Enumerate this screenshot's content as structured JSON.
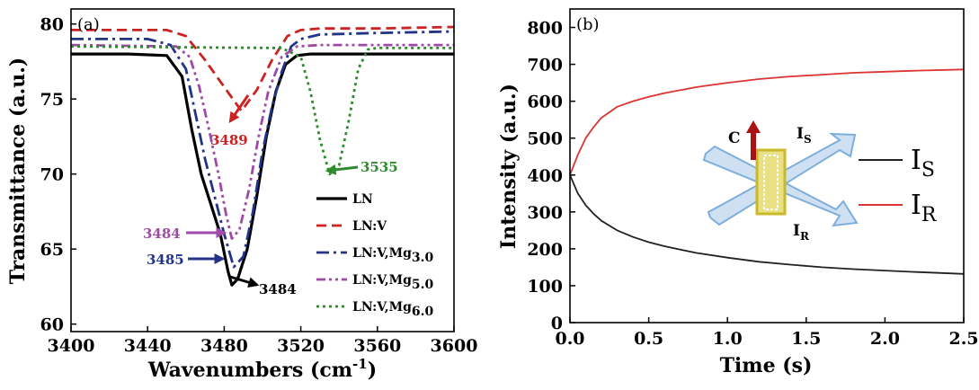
{
  "chart_data": [
    {
      "type": "line",
      "panel_label": "(a)",
      "xlabel_main": "Wavenumbers (cm",
      "xlabel_sup": "-1",
      "xlabel_end": ")",
      "ylabel": "Transmittance (a.u.)",
      "xlim": [
        3400,
        3600
      ],
      "ylim": [
        59.5,
        81
      ],
      "xticks": [
        3400,
        3440,
        3480,
        3520,
        3560,
        3600
      ],
      "yticks": [
        60,
        65,
        70,
        75,
        80
      ],
      "series": [
        {
          "key": "LN",
          "legend_main": "LN",
          "legend_sub": "",
          "color": "#000000",
          "dash": "",
          "x": [
            3400,
            3430,
            3450,
            3458,
            3463,
            3468,
            3473,
            3478,
            3482,
            3484,
            3487,
            3492,
            3497,
            3502,
            3507,
            3512,
            3518,
            3525,
            3540,
            3560,
            3600
          ],
          "y": [
            78.0,
            78.0,
            77.9,
            76.5,
            73.0,
            70.0,
            68.0,
            66.0,
            63.5,
            62.6,
            63.0,
            65.0,
            68.5,
            72.5,
            75.5,
            77.3,
            77.9,
            78.0,
            78.0,
            78.0,
            78.0
          ]
        },
        {
          "key": "LNV",
          "legend_main": "LN:V",
          "legend_sub": "",
          "color": "#cc2222",
          "dash": "11,6",
          "x": [
            3400,
            3450,
            3460,
            3470,
            3480,
            3489,
            3497,
            3505,
            3513,
            3520,
            3530,
            3560,
            3600
          ],
          "y": [
            79.6,
            79.6,
            79.2,
            77.6,
            75.8,
            74.2,
            75.6,
            77.6,
            79.2,
            79.6,
            79.7,
            79.7,
            79.8
          ]
        },
        {
          "key": "Mg30",
          "legend_main": "LN:V,Mg",
          "legend_sub": "3.0",
          "color": "#223388",
          "dash": "14,5,3,5",
          "x": [
            3400,
            3440,
            3452,
            3460,
            3465,
            3470,
            3475,
            3480,
            3485,
            3490,
            3495,
            3500,
            3505,
            3510,
            3515,
            3520,
            3530,
            3560,
            3600
          ],
          "y": [
            79.0,
            79.0,
            78.6,
            77.0,
            74.0,
            71.0,
            68.5,
            66.0,
            63.8,
            64.5,
            67.5,
            71.5,
            74.5,
            76.8,
            78.5,
            79.0,
            79.3,
            79.4,
            79.5
          ]
        },
        {
          "key": "Mg50",
          "legend_main": "LN:V,Mg",
          "legend_sub": "5.0",
          "color": "#a04aa8",
          "dash": "10,4,3,4,3,4",
          "x": [
            3400,
            3455,
            3462,
            3467,
            3472,
            3477,
            3481,
            3484,
            3488,
            3493,
            3498,
            3503,
            3510,
            3518,
            3530,
            3560,
            3600
          ],
          "y": [
            78.6,
            78.5,
            77.8,
            75.8,
            73.0,
            70.0,
            67.3,
            65.7,
            66.3,
            69.0,
            72.5,
            75.5,
            77.8,
            78.5,
            78.6,
            78.6,
            78.6
          ]
        },
        {
          "key": "Mg60",
          "legend_main": "LN:V,Mg",
          "legend_sub": "6.0",
          "color": "#2e8b2e",
          "dash": "3,4",
          "x": [
            3400,
            3510,
            3520,
            3525,
            3530,
            3535,
            3540,
            3545,
            3550,
            3555,
            3560,
            3600
          ],
          "y": [
            78.5,
            78.4,
            77.8,
            75.5,
            72.3,
            70.0,
            70.6,
            73.5,
            77.0,
            78.3,
            78.4,
            78.4
          ]
        }
      ],
      "annotations": [
        {
          "text": "3489",
          "color": "#cc2222"
        },
        {
          "text": "3535",
          "color": "#2e8b2e"
        },
        {
          "text": "3484",
          "color": "#a04aa8"
        },
        {
          "text": "3485",
          "color": "#223388"
        },
        {
          "text": "3484",
          "color": "#000000"
        }
      ]
    },
    {
      "type": "line",
      "panel_label": "(b)",
      "xlabel": "Time (s)",
      "ylabel": "Intensity (a.u.)",
      "xlim": [
        0,
        2.5
      ],
      "ylim": [
        0,
        850
      ],
      "xticks": [
        "0.0",
        "0.5",
        "1.0",
        "1.5",
        "2.0",
        "2.5"
      ],
      "yticks": [
        0,
        100,
        200,
        300,
        400,
        500,
        600,
        700,
        800
      ],
      "series": [
        {
          "key": "IS",
          "legend_main": "I",
          "legend_sub": "S",
          "color": "#222222",
          "x": [
            0,
            0.05,
            0.1,
            0.15,
            0.2,
            0.3,
            0.4,
            0.5,
            0.6,
            0.8,
            1.0,
            1.2,
            1.4,
            1.6,
            1.8,
            2.0,
            2.2,
            2.5
          ],
          "y": [
            400,
            350,
            318,
            295,
            276,
            250,
            232,
            218,
            207,
            189,
            176,
            165,
            157,
            150,
            145,
            141,
            137,
            132
          ]
        },
        {
          "key": "IR",
          "legend_main": "I",
          "legend_sub": "R",
          "color": "#dd3333",
          "x": [
            0,
            0.05,
            0.1,
            0.15,
            0.2,
            0.3,
            0.4,
            0.5,
            0.6,
            0.8,
            1.0,
            1.2,
            1.4,
            1.6,
            1.8,
            2.0,
            2.2,
            2.5
          ],
          "y": [
            400,
            455,
            500,
            530,
            555,
            585,
            600,
            612,
            622,
            638,
            650,
            660,
            667,
            672,
            677,
            680,
            683,
            686
          ]
        }
      ],
      "inset": {
        "c_label": "C",
        "top_label_main": "I",
        "top_label_sub": "S",
        "bottom_label_main": "I",
        "bottom_label_sub": "R"
      }
    }
  ]
}
